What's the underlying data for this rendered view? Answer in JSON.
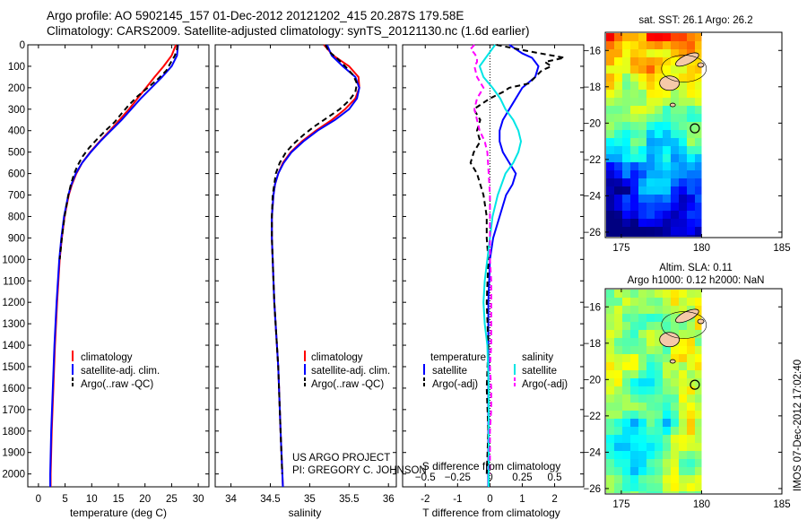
{
  "header": {
    "title_line1": "Argo profile: AO 5902145_157 01-Dec-2012 20121202_415 20.287S 179.58E",
    "title_line2": "Climatology: CARS2009. Satellite-adjusted climatology: synTS_20121130.nc (1.6d earlier)"
  },
  "colors": {
    "climatology": "#ff0000",
    "satellite": "#0000ff",
    "argo": "#000000",
    "satellite_salinity": "#00e5e5",
    "argo_salinity": "#ff00ff",
    "land": "#f5c9a9"
  },
  "footer_label": "IMOS 07-Dec-2012 17:02:40",
  "project_credit": {
    "line1": "US ARGO PROJECT",
    "line2": "PI: GREGORY C. JOHNSON"
  },
  "chart_data": [
    {
      "type": "line",
      "panel": "temperature",
      "xlabel": "temperature (deg C)",
      "ylabel": "",
      "xlim": [
        -2,
        32
      ],
      "ylim": [
        2060,
        0
      ],
      "xticks": [
        0,
        5,
        10,
        15,
        20,
        25,
        30
      ],
      "yticks": [
        0,
        100,
        200,
        300,
        400,
        500,
        600,
        700,
        800,
        900,
        1000,
        1100,
        1200,
        1300,
        1400,
        1500,
        1600,
        1700,
        1800,
        1900,
        2000
      ],
      "legend": [
        "climatology",
        "satellite-adj. clim.",
        "Argo(..raw -QC)"
      ],
      "series": [
        {
          "name": "climatology",
          "color": "#ff0000",
          "dash": "",
          "depth": [
            0,
            50,
            100,
            150,
            200,
            250,
            300,
            350,
            400,
            450,
            500,
            550,
            600,
            650,
            700,
            800,
            900,
            1000,
            1200,
            1400,
            1600,
            1800,
            2000,
            2060
          ],
          "values": [
            25.8,
            25.0,
            23.5,
            21.8,
            20.2,
            18.6,
            17.0,
            15.2,
            13.4,
            11.5,
            9.7,
            8.2,
            7.1,
            6.3,
            5.7,
            4.9,
            4.4,
            4.0,
            3.5,
            3.1,
            2.8,
            2.5,
            2.3,
            2.3
          ]
        },
        {
          "name": "satellite-adj. clim.",
          "color": "#0000ff",
          "dash": "",
          "depth": [
            0,
            50,
            100,
            150,
            200,
            250,
            300,
            350,
            400,
            450,
            500,
            550,
            600,
            650,
            700,
            800,
            900,
            1000,
            1200,
            1400,
            1600,
            1800,
            2000,
            2060
          ],
          "values": [
            26.2,
            26.0,
            25.0,
            23.2,
            21.2,
            19.2,
            17.4,
            15.6,
            13.6,
            11.6,
            9.8,
            8.2,
            7.0,
            6.2,
            5.6,
            4.8,
            4.3,
            3.9,
            3.4,
            3.0,
            2.7,
            2.4,
            2.2,
            2.2
          ]
        },
        {
          "name": "Argo(..raw -QC)",
          "color": "#000000",
          "dash": "6,4",
          "depth": [
            0,
            20,
            50,
            80,
            120,
            160,
            200,
            240,
            280,
            320,
            360,
            400,
            440,
            480,
            520,
            560,
            600,
            650,
            700,
            800,
            900,
            1000
          ],
          "values": [
            26.1,
            26.0,
            25.6,
            24.9,
            24.0,
            22.4,
            20.5,
            18.6,
            17.0,
            15.6,
            14.3,
            12.6,
            11.0,
            9.5,
            8.3,
            7.4,
            6.7,
            6.1,
            5.6,
            4.9,
            4.4,
            4.0
          ]
        }
      ]
    },
    {
      "type": "line",
      "panel": "salinity",
      "xlabel": "salinity",
      "ylabel": "",
      "xlim": [
        33.8,
        36.1
      ],
      "ylim": [
        2060,
        0
      ],
      "xticks": [
        34,
        34.5,
        35,
        35.5,
        36
      ],
      "legend": [
        "climatology",
        "satellite-adj. clim.",
        "Argo(..raw -QC)"
      ],
      "series": [
        {
          "name": "climatology",
          "color": "#ff0000",
          "dash": "",
          "depth": [
            0,
            50,
            100,
            150,
            200,
            250,
            300,
            350,
            400,
            450,
            500,
            550,
            600,
            650,
            700,
            800,
            900,
            1000,
            1200,
            1500,
            1800,
            2060
          ],
          "values": [
            35.18,
            35.3,
            35.5,
            35.62,
            35.63,
            35.58,
            35.45,
            35.28,
            35.08,
            34.9,
            34.76,
            34.66,
            34.6,
            34.56,
            34.54,
            34.52,
            34.52,
            34.53,
            34.55,
            34.6,
            34.63,
            34.66
          ]
        },
        {
          "name": "satellite-adj. clim.",
          "color": "#0000ff",
          "dash": "",
          "depth": [
            0,
            50,
            100,
            150,
            200,
            250,
            300,
            350,
            400,
            450,
            500,
            550,
            600,
            650,
            700,
            800,
            900,
            1000,
            1200,
            1500,
            1800,
            2060
          ],
          "values": [
            35.22,
            35.28,
            35.42,
            35.58,
            35.63,
            35.6,
            35.5,
            35.32,
            35.1,
            34.92,
            34.77,
            34.67,
            34.6,
            34.56,
            34.54,
            34.52,
            34.52,
            34.53,
            34.55,
            34.6,
            34.63,
            34.66
          ]
        },
        {
          "name": "Argo(..raw -QC)",
          "color": "#000000",
          "dash": "6,4",
          "depth": [
            0,
            30,
            60,
            100,
            140,
            180,
            220,
            260,
            300,
            340,
            380,
            420,
            460,
            500,
            550,
            600,
            650,
            700,
            800,
            900,
            1000,
            1200,
            1500,
            1800,
            2000
          ],
          "values": [
            35.2,
            35.24,
            35.34,
            35.45,
            35.55,
            35.6,
            35.58,
            35.5,
            35.38,
            35.22,
            35.06,
            34.92,
            34.8,
            34.7,
            34.62,
            34.57,
            34.55,
            34.53,
            34.52,
            34.52,
            34.53,
            34.55,
            34.6,
            34.63,
            34.65
          ]
        }
      ]
    },
    {
      "type": "line",
      "panel": "difference",
      "xlabel": "T difference from climatology",
      "xlabel2": "S difference from climatology",
      "ylabel": "",
      "xlim": [
        -2.7,
        2.9
      ],
      "ylim": [
        2060,
        0
      ],
      "xticks": [
        -2,
        -1,
        0,
        1,
        2
      ],
      "xticks_s": [
        -0.5,
        -0.25,
        0,
        0.25,
        0.5
      ],
      "legend_headers": [
        "temperature",
        "salinity"
      ],
      "legend": [
        "satellite",
        "Argo(-adj)",
        "satellite",
        "Argo(-adj)"
      ],
      "series": [
        {
          "name": "T satellite",
          "color": "#0000ff",
          "dash": "",
          "depth": [
            0,
            20,
            40,
            60,
            80,
            100,
            150,
            200,
            250,
            300,
            350,
            400,
            450,
            500,
            550,
            600,
            650,
            700,
            800,
            900,
            1000,
            1200,
            1500,
            1800,
            2060
          ],
          "values": [
            0.6,
            0.8,
            1.0,
            1.3,
            1.4,
            1.5,
            1.4,
            1.0,
            0.8,
            0.6,
            0.4,
            0.3,
            0.3,
            0.4,
            0.6,
            0.8,
            0.7,
            0.5,
            0.3,
            0.1,
            0.0,
            -0.05,
            -0.05,
            -0.05,
            -0.05
          ]
        },
        {
          "name": "T Argo(-adj)",
          "color": "#000000",
          "dash": "6,4",
          "depth": [
            0,
            30,
            60,
            80,
            100,
            120,
            150,
            180,
            200,
            220,
            250,
            280,
            300,
            350,
            400,
            450,
            500,
            550,
            600,
            650,
            700,
            800,
            900,
            1000,
            1200,
            1400,
            1600,
            1800,
            2000
          ],
          "values": [
            0.2,
            1.2,
            2.3,
            1.7,
            1.9,
            1.6,
            1.4,
            1.2,
            0.6,
            0.4,
            0.0,
            -0.3,
            -0.5,
            -0.3,
            -0.4,
            -0.3,
            -0.5,
            -0.6,
            -0.4,
            -0.3,
            -0.2,
            -0.1,
            -0.1,
            -0.05,
            -0.1,
            -0.05,
            -0.1,
            -0.05,
            -0.1
          ]
        },
        {
          "name": "S satellite",
          "color": "#00e5e5",
          "dash": "",
          "depth": [
            0,
            50,
            100,
            150,
            200,
            250,
            300,
            350,
            400,
            450,
            500,
            550,
            600,
            700,
            800,
            900,
            1000,
            1100,
            1200,
            1300,
            1400,
            1600,
            1800,
            2060
          ],
          "values": [
            0.04,
            -0.02,
            -0.08,
            -0.05,
            0.02,
            0.08,
            0.12,
            0.18,
            0.22,
            0.24,
            0.22,
            0.18,
            0.12,
            0.06,
            0.02,
            0.0,
            -0.02,
            -0.04,
            -0.05,
            -0.04,
            -0.02,
            -0.01,
            -0.01,
            -0.01
          ]
        },
        {
          "name": "S Argo(-adj)",
          "color": "#ff00ff",
          "dash": "6,4",
          "depth": [
            0,
            20,
            40,
            60,
            80,
            100,
            150,
            200,
            250,
            300,
            350,
            400,
            450,
            500,
            600,
            700,
            800,
            900,
            1000,
            1100,
            1200,
            1300,
            1400,
            1500,
            1600,
            1700,
            1800,
            2000
          ],
          "values": [
            -0.12,
            -0.15,
            -0.12,
            -0.1,
            -0.1,
            -0.12,
            -0.1,
            -0.05,
            -0.1,
            -0.12,
            -0.1,
            -0.08,
            -0.04,
            -0.02,
            -0.01,
            0.0,
            0.0,
            0.0,
            0.0,
            0.01,
            0.01,
            0.01,
            0.01,
            0.0,
            0.01,
            0.01,
            0.0,
            0.0
          ]
        }
      ]
    },
    {
      "type": "heatmap",
      "panel": "sst_map",
      "title": "sat. SST: 26.1  Argo: 26.2",
      "xlim": [
        174,
        185
      ],
      "ylim": [
        -26.3,
        -15
      ],
      "xticks": [
        175,
        180,
        185
      ],
      "yticks": [
        -16,
        -18,
        -20,
        -22,
        -24,
        -26
      ],
      "marker": {
        "lon": 179.58,
        "lat": -20.287
      }
    },
    {
      "type": "heatmap",
      "panel": "sla_map",
      "title": "Altim. SLA: 0.11",
      "subtitle": "Argo h1000: 0.12  h2000: NaN",
      "xlim": [
        174,
        185
      ],
      "ylim": [
        -26.3,
        -15
      ],
      "xticks": [
        175,
        180,
        185
      ],
      "yticks": [
        -16,
        -18,
        -20,
        -22,
        -24,
        -26
      ],
      "marker": {
        "lon": 179.58,
        "lat": -20.287
      }
    }
  ]
}
